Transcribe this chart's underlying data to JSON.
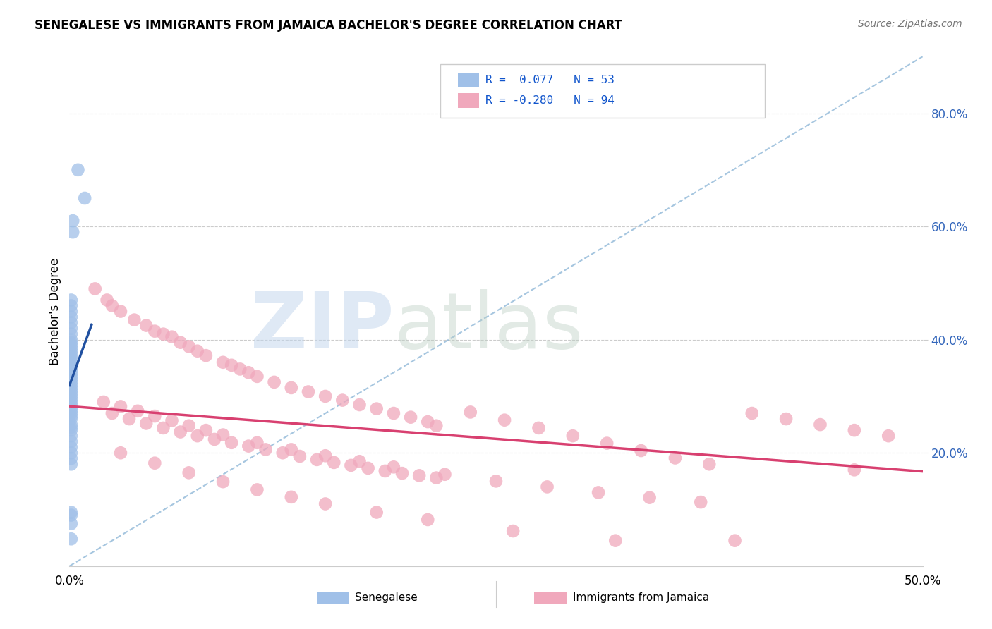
{
  "title": "SENEGALESE VS IMMIGRANTS FROM JAMAICA BACHELOR'S DEGREE CORRELATION CHART",
  "source": "Source: ZipAtlas.com",
  "ylabel": "Bachelor's Degree",
  "xlim": [
    0.0,
    0.5
  ],
  "ylim": [
    0.0,
    0.9
  ],
  "ytick_positions": [
    0.2,
    0.4,
    0.6,
    0.8
  ],
  "ytick_labels": [
    "20.0%",
    "40.0%",
    "60.0%",
    "80.0%"
  ],
  "blue_R": 0.077,
  "blue_N": 53,
  "pink_R": -0.28,
  "pink_N": 94,
  "blue_color": "#a0c0e8",
  "pink_color": "#f0a8bc",
  "blue_line_color": "#2050a0",
  "pink_line_color": "#d84070",
  "dash_line_color": "#90b8d8",
  "legend_label_blue": "Senegalese",
  "legend_label_pink": "Immigrants from Jamaica",
  "blue_scatter_x": [
    0.005,
    0.009,
    0.002,
    0.002,
    0.001,
    0.001,
    0.001,
    0.001,
    0.001,
    0.001,
    0.001,
    0.001,
    0.001,
    0.001,
    0.001,
    0.001,
    0.001,
    0.001,
    0.001,
    0.001,
    0.001,
    0.001,
    0.001,
    0.001,
    0.001,
    0.001,
    0.001,
    0.001,
    0.001,
    0.001,
    0.001,
    0.001,
    0.001,
    0.001,
    0.001,
    0.001,
    0.001,
    0.001,
    0.001,
    0.001,
    0.001,
    0.001,
    0.001,
    0.001,
    0.001,
    0.001,
    0.001,
    0.001,
    0.001,
    0.001,
    0.001,
    0.001,
    0.001
  ],
  "blue_scatter_y": [
    0.7,
    0.65,
    0.61,
    0.59,
    0.47,
    0.46,
    0.45,
    0.44,
    0.43,
    0.42,
    0.41,
    0.4,
    0.395,
    0.39,
    0.385,
    0.38,
    0.375,
    0.37,
    0.365,
    0.36,
    0.355,
    0.35,
    0.345,
    0.34,
    0.335,
    0.33,
    0.325,
    0.32,
    0.315,
    0.31,
    0.305,
    0.3,
    0.295,
    0.29,
    0.285,
    0.28,
    0.275,
    0.27,
    0.265,
    0.26,
    0.25,
    0.245,
    0.24,
    0.23,
    0.22,
    0.21,
    0.2,
    0.19,
    0.18,
    0.095,
    0.09,
    0.075,
    0.048
  ],
  "pink_scatter_x": [
    0.015,
    0.022,
    0.025,
    0.03,
    0.038,
    0.045,
    0.05,
    0.055,
    0.06,
    0.065,
    0.07,
    0.075,
    0.08,
    0.09,
    0.095,
    0.1,
    0.105,
    0.11,
    0.12,
    0.13,
    0.14,
    0.15,
    0.16,
    0.17,
    0.18,
    0.19,
    0.2,
    0.21,
    0.215,
    0.025,
    0.035,
    0.045,
    0.055,
    0.065,
    0.075,
    0.085,
    0.095,
    0.105,
    0.115,
    0.125,
    0.135,
    0.145,
    0.155,
    0.165,
    0.175,
    0.185,
    0.195,
    0.205,
    0.215,
    0.235,
    0.255,
    0.275,
    0.295,
    0.315,
    0.335,
    0.355,
    0.375,
    0.4,
    0.42,
    0.44,
    0.46,
    0.48,
    0.02,
    0.03,
    0.04,
    0.05,
    0.06,
    0.07,
    0.08,
    0.09,
    0.11,
    0.13,
    0.15,
    0.17,
    0.19,
    0.22,
    0.25,
    0.28,
    0.31,
    0.34,
    0.37,
    0.03,
    0.05,
    0.07,
    0.09,
    0.11,
    0.13,
    0.15,
    0.18,
    0.21,
    0.26,
    0.32,
    0.39,
    0.46
  ],
  "pink_scatter_y": [
    0.49,
    0.47,
    0.46,
    0.45,
    0.435,
    0.425,
    0.415,
    0.41,
    0.405,
    0.395,
    0.388,
    0.38,
    0.372,
    0.36,
    0.355,
    0.348,
    0.342,
    0.335,
    0.325,
    0.315,
    0.308,
    0.3,
    0.293,
    0.285,
    0.278,
    0.27,
    0.263,
    0.255,
    0.248,
    0.27,
    0.26,
    0.252,
    0.244,
    0.237,
    0.23,
    0.224,
    0.218,
    0.212,
    0.206,
    0.2,
    0.194,
    0.188,
    0.183,
    0.178,
    0.173,
    0.168,
    0.164,
    0.16,
    0.156,
    0.272,
    0.258,
    0.244,
    0.23,
    0.217,
    0.204,
    0.191,
    0.18,
    0.27,
    0.26,
    0.25,
    0.24,
    0.23,
    0.29,
    0.282,
    0.274,
    0.265,
    0.257,
    0.248,
    0.24,
    0.232,
    0.218,
    0.206,
    0.195,
    0.185,
    0.175,
    0.162,
    0.15,
    0.14,
    0.13,
    0.121,
    0.113,
    0.2,
    0.182,
    0.165,
    0.149,
    0.135,
    0.122,
    0.11,
    0.095,
    0.082,
    0.062,
    0.045,
    0.045,
    0.17
  ],
  "background_color": "#ffffff",
  "grid_color": "#cccccc"
}
